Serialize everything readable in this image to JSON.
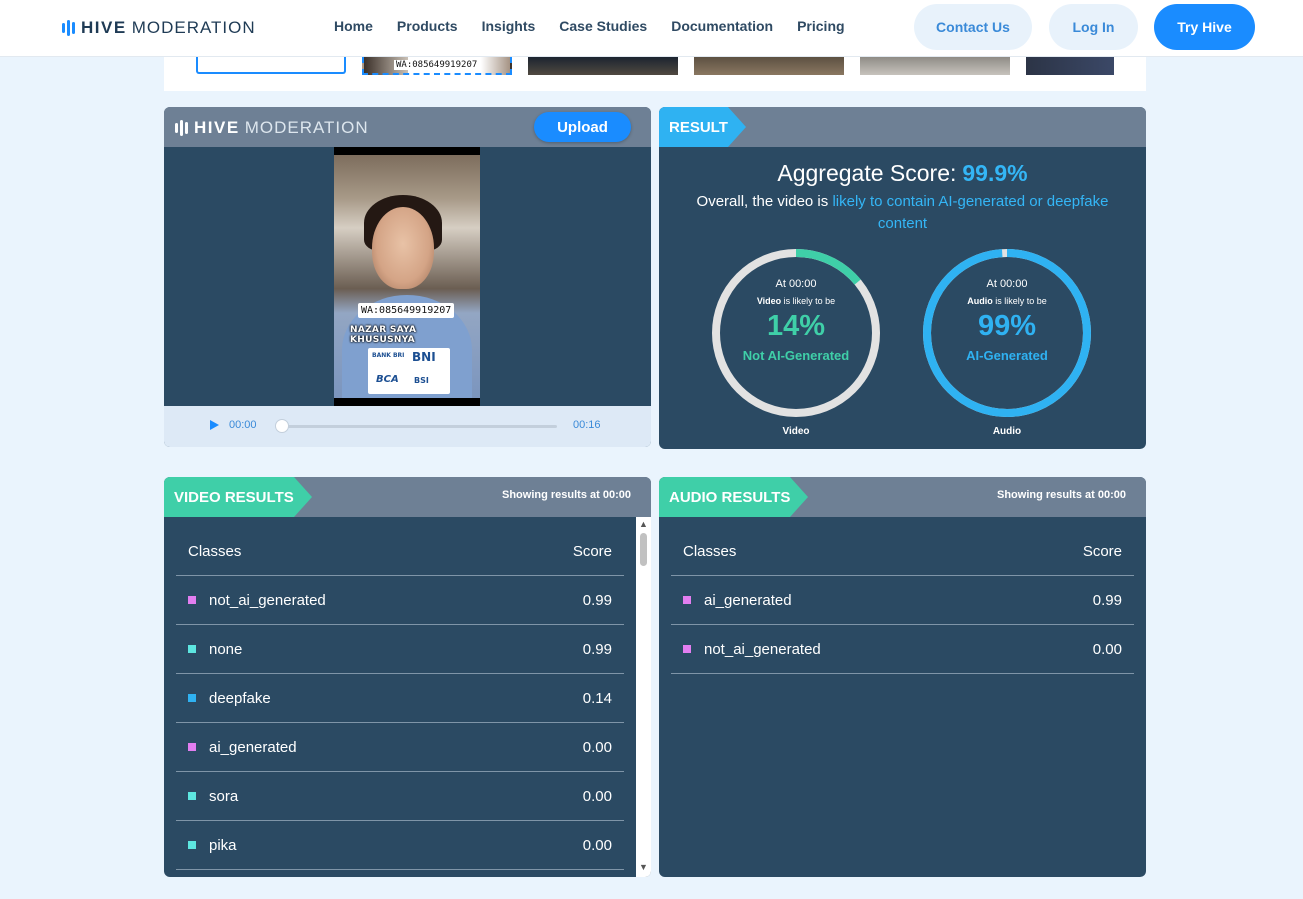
{
  "nav": {
    "logo_bold": "HIVE",
    "logo_light": "MODERATION",
    "links": [
      "Home",
      "Products",
      "Insights",
      "Case Studies",
      "Documentation",
      "Pricing"
    ],
    "contact": "Contact Us",
    "login": "Log In",
    "try": "Try Hive"
  },
  "thumbnails": {
    "overlay_text": "WA:085649919207"
  },
  "player": {
    "logo_bold": "HIVE",
    "logo_light": "MODERATION",
    "upload": "Upload",
    "overlay_wa": "WA:085649919207",
    "overlay_caption": "NAZAR SAYA KHUSUSNYA",
    "banks": [
      "BANK BRI",
      "BNI",
      "BCA",
      "BSI"
    ],
    "current_time": "00:00",
    "duration": "00:16",
    "progress": 0
  },
  "result": {
    "ribbon": "RESULT",
    "aggregate_label": "Aggregate Score:",
    "aggregate_value": "99.9%",
    "overall_prefix": "Overall, the video is ",
    "overall_highlight": "likely to contain AI-generated or deepfake content",
    "video_gauge": {
      "at": "At 00:00",
      "subject": "Video",
      "likely": " is likely to be",
      "percent": "14%",
      "fraction": 0.14,
      "label": "Not AI-Generated",
      "color": "#3fcfa8",
      "name": "Video"
    },
    "audio_gauge": {
      "at": "At 00:00",
      "subject": "Audio",
      "likely": " is likely to be",
      "percent": "99%",
      "fraction": 0.99,
      "label": "AI-Generated",
      "color": "#2fb2f2",
      "name": "Audio"
    }
  },
  "video_results": {
    "ribbon": "VIDEO RESULTS",
    "showing_prefix": "Showing results at ",
    "showing_time": "00:00",
    "col_classes": "Classes",
    "col_score": "Score",
    "rows": [
      {
        "name": "not_ai_generated",
        "score": "0.99",
        "color": "#e27ef0"
      },
      {
        "name": "none",
        "score": "0.99",
        "color": "#5de6e0"
      },
      {
        "name": "deepfake",
        "score": "0.14",
        "color": "#2fb2f2"
      },
      {
        "name": "ai_generated",
        "score": "0.00",
        "color": "#e27ef0"
      },
      {
        "name": "sora",
        "score": "0.00",
        "color": "#5de6e0"
      },
      {
        "name": "pika",
        "score": "0.00",
        "color": "#5de6e0"
      }
    ]
  },
  "audio_results": {
    "ribbon": "AUDIO RESULTS",
    "showing_prefix": "Showing results at ",
    "showing_time": "00:00",
    "col_classes": "Classes",
    "col_score": "Score",
    "rows": [
      {
        "name": "ai_generated",
        "score": "0.99",
        "color": "#e27ef0"
      },
      {
        "name": "not_ai_generated",
        "score": "0.00",
        "color": "#e27ef0"
      }
    ]
  }
}
